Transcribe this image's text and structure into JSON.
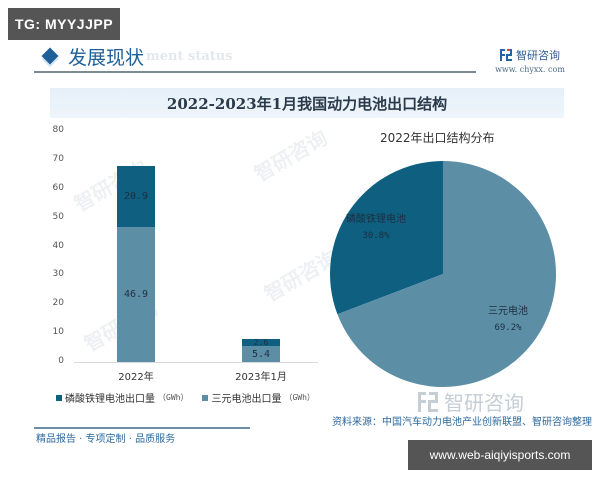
{
  "overlay": {
    "tag": "TG: MYYJJPP",
    "site_url": "www.web-aiqiyisports.com"
  },
  "header": {
    "section_title": "发展现状",
    "section_subtitle": "ment status",
    "brand_name": "智研咨询",
    "brand_url": "www. chyxx. com",
    "chart_title": "2022-2023年1月我国动力电池出口结构"
  },
  "colors": {
    "lfp": "#0e5f80",
    "ternary": "#5c8fa6",
    "accent": "#1f5f99"
  },
  "footer": {
    "tagline": "精品报告 · 专项定制 · 品质服务",
    "source": "资料来源：中国汽车动力电池产业创新联盟、智研咨询整理",
    "watermark_brand": "智研咨询"
  },
  "chart_data": [
    {
      "type": "bar",
      "stacked": true,
      "title": "2022-2023年1月我国动力电池出口结构",
      "xlabel": "",
      "ylabel": "",
      "ylim": [
        0,
        80
      ],
      "yticks": [
        "0",
        "10",
        "20",
        "30",
        "40",
        "50",
        "60",
        "70",
        "80"
      ],
      "categories": [
        "2022年",
        "2023年1月"
      ],
      "series": [
        {
          "name": "三元电池出口量",
          "unit": "（GWh）",
          "values": [
            46.9,
            5.4
          ],
          "labels": [
            "46.9",
            "5.4"
          ],
          "color": "#5c8fa6"
        },
        {
          "name": "磷酸铁锂电池出口量",
          "unit": "（GWh）",
          "values": [
            20.9,
            2.6
          ],
          "labels": [
            "20.9",
            "2.6"
          ],
          "color": "#0e5f80"
        }
      ],
      "legend": [
        {
          "name": "磷酸铁锂电池出口量",
          "unit": "（GWh）"
        },
        {
          "name": "三元电池出口量",
          "unit": "（GWh）"
        }
      ],
      "legend_position": "bottom",
      "grid": false
    },
    {
      "type": "pie",
      "title": "2022年出口结构分布",
      "slices": [
        {
          "name": "磷酸铁锂电池",
          "value": 30.8,
          "label": "30.8%",
          "color": "#0e5f80"
        },
        {
          "name": "三元电池",
          "value": 69.2,
          "label": "69.2%",
          "color": "#5c8fa6"
        }
      ]
    }
  ]
}
